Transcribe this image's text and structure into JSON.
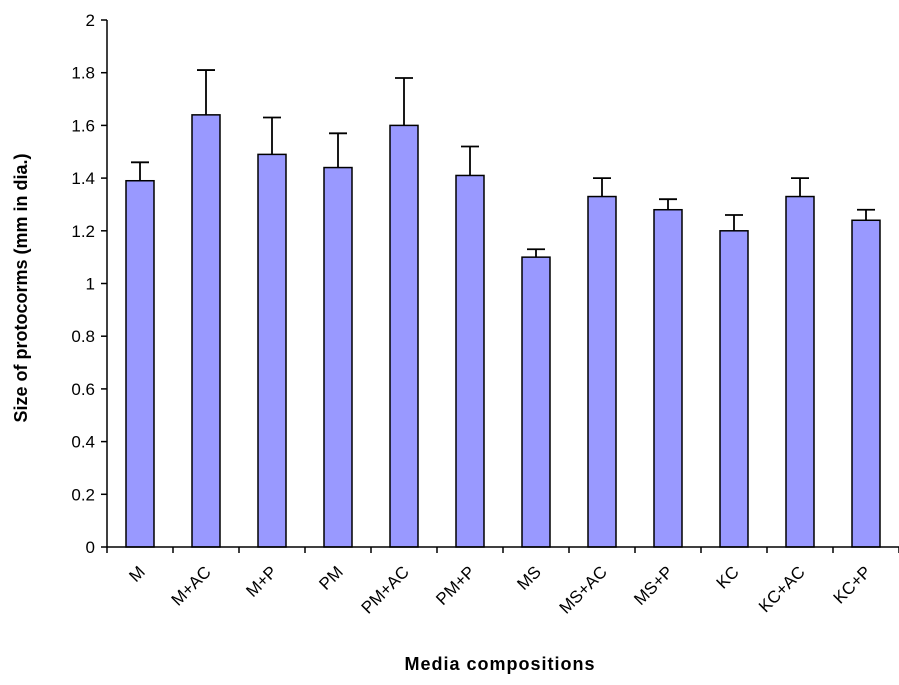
{
  "chart_data": {
    "type": "bar",
    "title": "",
    "xlabel": "Media compositions",
    "ylabel": "Size of protocorms (mm in dia.)",
    "categories": [
      "M",
      "M+AC",
      "M+P",
      "PM",
      "PM+AC",
      "PM+P",
      "MS",
      "MS+AC",
      "MS+P",
      "KC",
      "KC+AC",
      "KC+P"
    ],
    "values": [
      1.39,
      1.64,
      1.49,
      1.44,
      1.6,
      1.41,
      1.1,
      1.33,
      1.28,
      1.2,
      1.33,
      1.24
    ],
    "error_upper": [
      1.46,
      1.81,
      1.63,
      1.57,
      1.78,
      1.52,
      1.13,
      1.4,
      1.32,
      1.26,
      1.4,
      1.28
    ],
    "ylim": [
      0,
      2
    ],
    "yticks": [
      0,
      0.2,
      0.4,
      0.6,
      0.8,
      1,
      1.2,
      1.4,
      1.6,
      1.8,
      2
    ],
    "ytick_labels": [
      "0",
      "0.2",
      "0.4",
      "0.6",
      "0.8",
      "1",
      "1.2",
      "1.4",
      "1.6",
      "1.8",
      "2"
    ],
    "grid": false,
    "legend": "none",
    "colors": {
      "bar_fill": "#9999ff",
      "bar_stroke": "#000000",
      "axis": "#000000"
    }
  }
}
